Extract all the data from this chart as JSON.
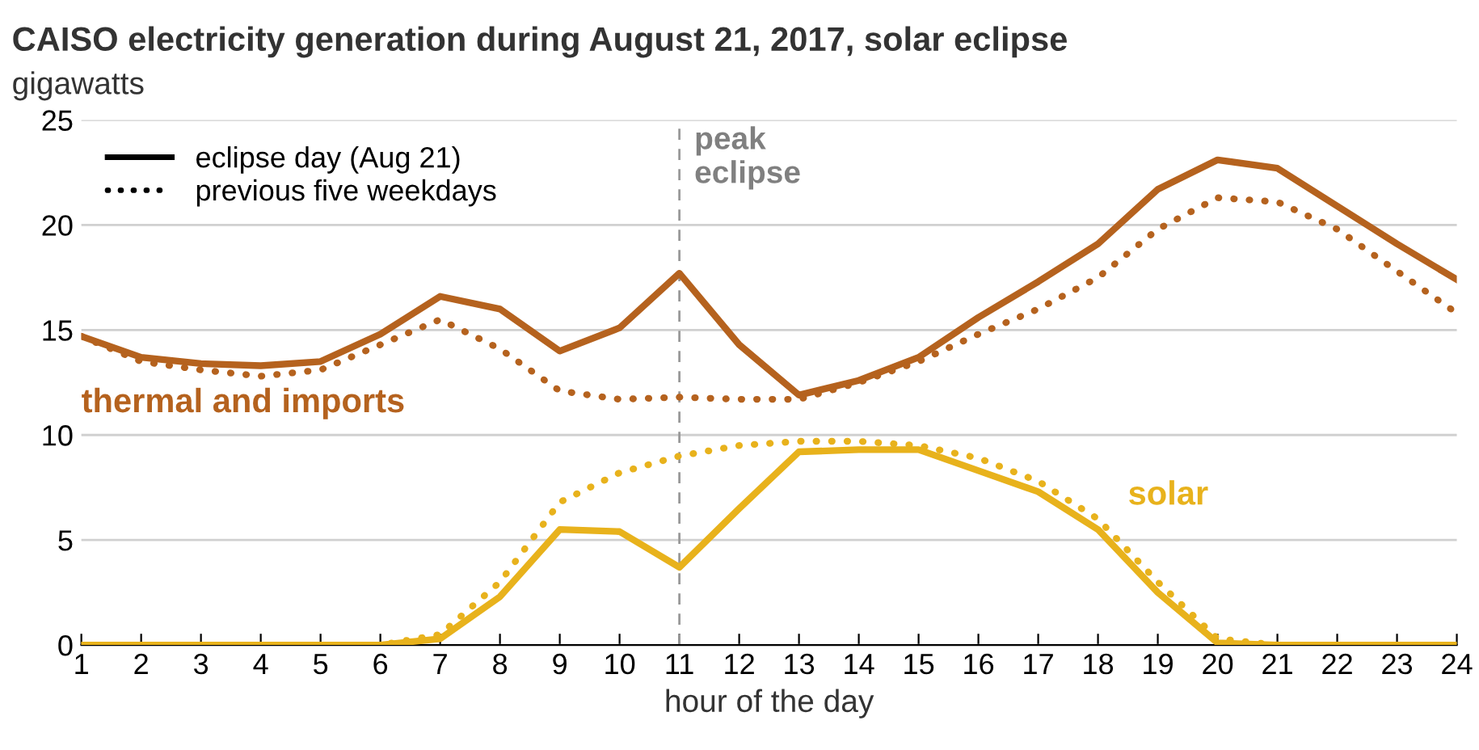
{
  "chart_data": {
    "type": "line",
    "title": "CAISO electricity generation during August 21, 2017, solar eclipse",
    "ylabel": "gigawatts",
    "xlabel": "hour of the day",
    "x": [
      1,
      2,
      3,
      4,
      5,
      6,
      7,
      8,
      9,
      10,
      11,
      12,
      13,
      14,
      15,
      16,
      17,
      18,
      19,
      20,
      21,
      22,
      23,
      24
    ],
    "series": [
      {
        "name": "thermal and imports",
        "color": "#b5621e",
        "line_style": "solid",
        "values": [
          14.7,
          13.7,
          13.4,
          13.3,
          13.5,
          14.8,
          16.6,
          16.0,
          14.0,
          15.1,
          17.7,
          14.3,
          11.9,
          12.6,
          13.7,
          15.6,
          17.3,
          19.1,
          21.7,
          23.1,
          22.7,
          20.9,
          19.1,
          17.4
        ]
      },
      {
        "color": "#b5621e",
        "line_style": "dotted",
        "values": [
          14.7,
          13.5,
          13.1,
          12.8,
          13.1,
          14.3,
          15.5,
          14.1,
          12.1,
          11.7,
          11.8,
          11.7,
          11.7,
          12.5,
          13.5,
          14.8,
          16.0,
          17.5,
          19.8,
          21.3,
          21.1,
          19.8,
          17.8,
          15.8
        ]
      },
      {
        "name": "solar",
        "color": "#e8b21c",
        "line_style": "solid",
        "values": [
          0,
          0,
          0,
          0,
          0,
          0,
          0.3,
          2.3,
          5.5,
          5.4,
          3.7,
          6.5,
          9.2,
          9.3,
          9.3,
          8.3,
          7.3,
          5.5,
          2.5,
          0.1,
          0,
          0,
          0,
          0
        ]
      },
      {
        "color": "#e8b21c",
        "line_style": "dotted",
        "values": [
          0,
          0,
          0,
          0,
          0,
          0,
          0.5,
          3.0,
          6.8,
          8.2,
          9.0,
          9.5,
          9.7,
          9.7,
          9.5,
          8.9,
          7.8,
          6.0,
          3.0,
          0.3,
          0,
          0,
          0,
          0
        ]
      }
    ],
    "annotations": [
      "eclipse day (Aug 21)",
      "previous five weekdays"
    ],
    "ref_lines": [
      {
        "axis": "x",
        "value": 11,
        "label": "peak\neclipse",
        "color": "#999999",
        "line_style": "dashed"
      }
    ],
    "xlim": [
      1,
      24
    ],
    "xticks": [
      1,
      2,
      3,
      4,
      5,
      6,
      7,
      8,
      9,
      10,
      11,
      12,
      13,
      14,
      15,
      16,
      17,
      18,
      19,
      20,
      21,
      22,
      23,
      24
    ],
    "ylim": [
      0,
      25
    ],
    "yticks": [
      0,
      5,
      10,
      15,
      20,
      25
    ],
    "grid": "y",
    "marker": "none"
  }
}
